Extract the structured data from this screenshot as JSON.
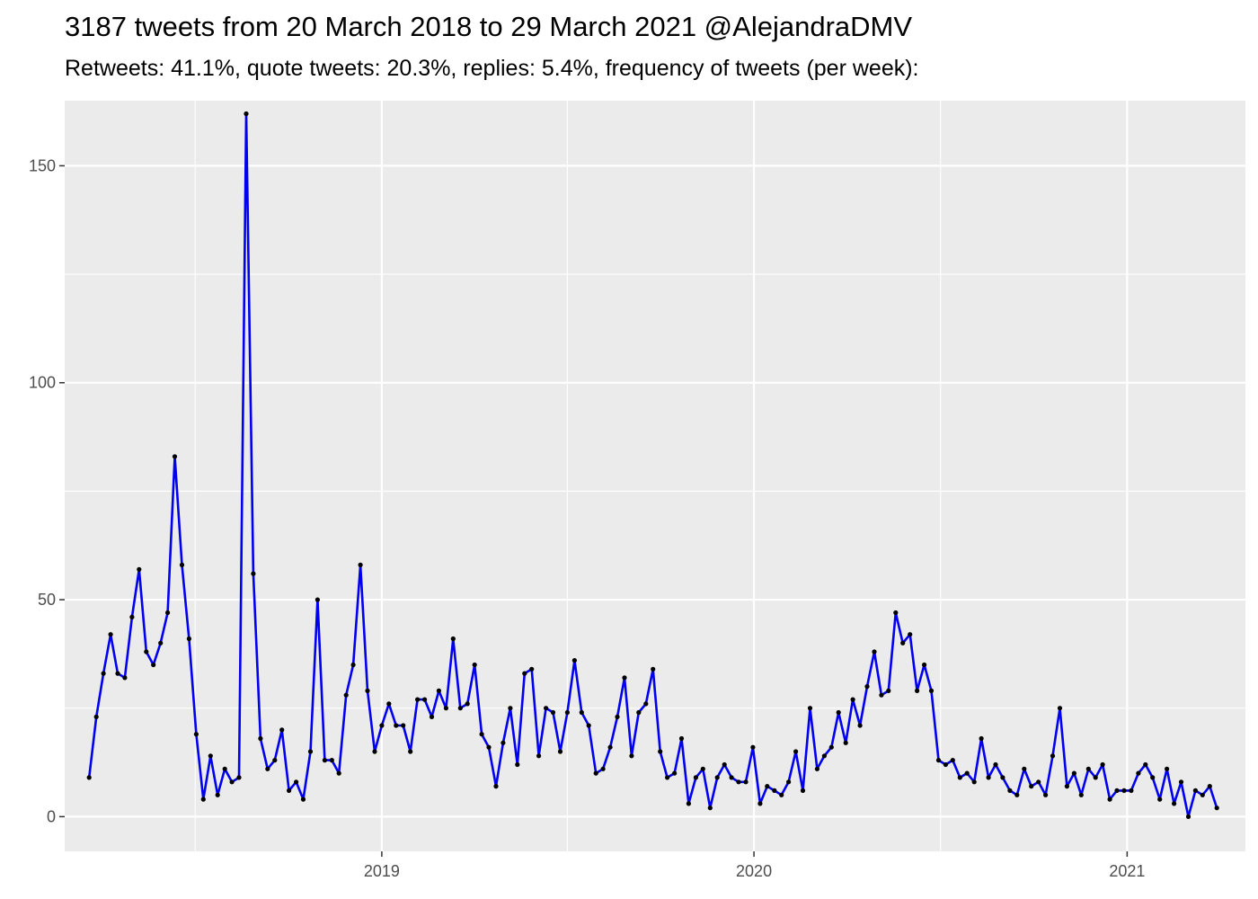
{
  "chart_data": {
    "type": "line",
    "title": "3187 tweets from 20 March 2018 to 29 March 2021 @AlejandraDMV",
    "subtitle": "Retweets: 41.1%, quote tweets: 20.3%, replies: 5.4%, frequency of tweets (per week):",
    "xlabel": "",
    "ylabel": "",
    "x_axis": {
      "kind": "date",
      "range": [
        "2018-02-24",
        "2021-04-27"
      ],
      "ticks": [
        "2019",
        "2020",
        "2021"
      ],
      "tick_dates": [
        "2019-01-01",
        "2020-01-01",
        "2021-01-01"
      ]
    },
    "y_axis": {
      "range": [
        -8,
        165
      ],
      "ticks": [
        0,
        50,
        100,
        150
      ]
    },
    "grid": true,
    "legend": "none",
    "colors": {
      "panel": "#ebebeb",
      "grid": "#ffffff",
      "line": "#0000ee",
      "points": "#000000",
      "tick_text": "#4d4d4d"
    },
    "series": [
      {
        "x": [
          "2018-03-20",
          "2018-03-27",
          "2018-04-03",
          "2018-04-10",
          "2018-04-17",
          "2018-04-24",
          "2018-05-01",
          "2018-05-08",
          "2018-05-15",
          "2018-05-22",
          "2018-05-29",
          "2018-06-05",
          "2018-06-12",
          "2018-06-19",
          "2018-06-26",
          "2018-07-03",
          "2018-07-10",
          "2018-07-17",
          "2018-07-24",
          "2018-07-31",
          "2018-08-07",
          "2018-08-14",
          "2018-08-21",
          "2018-08-28",
          "2018-09-04",
          "2018-09-11",
          "2018-09-18",
          "2018-09-25",
          "2018-10-02",
          "2018-10-09",
          "2018-10-16",
          "2018-10-23",
          "2018-10-30",
          "2018-11-06",
          "2018-11-13",
          "2018-11-20",
          "2018-11-27",
          "2018-12-04",
          "2018-12-11",
          "2018-12-18",
          "2018-12-25",
          "2019-01-01",
          "2019-01-08",
          "2019-01-15",
          "2019-01-22",
          "2019-01-29",
          "2019-02-05",
          "2019-02-12",
          "2019-02-19",
          "2019-02-26",
          "2019-03-05",
          "2019-03-12",
          "2019-03-19",
          "2019-03-26",
          "2019-04-02",
          "2019-04-09",
          "2019-04-16",
          "2019-04-23",
          "2019-04-30",
          "2019-05-07",
          "2019-05-14",
          "2019-05-21",
          "2019-05-28",
          "2019-06-04",
          "2019-06-11",
          "2019-06-18",
          "2019-06-25",
          "2019-07-02",
          "2019-07-09",
          "2019-07-16",
          "2019-07-23",
          "2019-07-30",
          "2019-08-06",
          "2019-08-13",
          "2019-08-20",
          "2019-08-27",
          "2019-09-03",
          "2019-09-10",
          "2019-09-17",
          "2019-09-24",
          "2019-10-01",
          "2019-10-08",
          "2019-10-15",
          "2019-10-22",
          "2019-10-29",
          "2019-11-05",
          "2019-11-12",
          "2019-11-19",
          "2019-11-26",
          "2019-12-03",
          "2019-12-10",
          "2019-12-17",
          "2019-12-24",
          "2019-12-31",
          "2020-01-07",
          "2020-01-14",
          "2020-01-21",
          "2020-01-28",
          "2020-02-04",
          "2020-02-11",
          "2020-02-18",
          "2020-02-25",
          "2020-03-03",
          "2020-03-10",
          "2020-03-17",
          "2020-03-24",
          "2020-03-31",
          "2020-04-07",
          "2020-04-14",
          "2020-04-21",
          "2020-04-28",
          "2020-05-05",
          "2020-05-12",
          "2020-05-19",
          "2020-05-26",
          "2020-06-02",
          "2020-06-09",
          "2020-06-16",
          "2020-06-23",
          "2020-06-30",
          "2020-07-07",
          "2020-07-14",
          "2020-07-21",
          "2020-07-28",
          "2020-08-04",
          "2020-08-11",
          "2020-08-18",
          "2020-08-25",
          "2020-09-01",
          "2020-09-08",
          "2020-09-15",
          "2020-09-22",
          "2020-09-29",
          "2020-10-06",
          "2020-10-13",
          "2020-10-20",
          "2020-10-27",
          "2020-11-03",
          "2020-11-10",
          "2020-11-17",
          "2020-11-24",
          "2020-12-01",
          "2020-12-08",
          "2020-12-15",
          "2020-12-22",
          "2020-12-29",
          "2021-01-05",
          "2021-01-12",
          "2021-01-19",
          "2021-01-26",
          "2021-02-02",
          "2021-02-09",
          "2021-02-16",
          "2021-02-23",
          "2021-03-02",
          "2021-03-09",
          "2021-03-16",
          "2021-03-23",
          "2021-03-30"
        ],
        "values": [
          9,
          23,
          33,
          42,
          33,
          32,
          46,
          57,
          38,
          35,
          40,
          47,
          83,
          58,
          41,
          19,
          4,
          14,
          5,
          11,
          8,
          9,
          162,
          56,
          18,
          11,
          13,
          20,
          6,
          8,
          4,
          15,
          50,
          13,
          13,
          10,
          28,
          35,
          58,
          29,
          15,
          21,
          26,
          21,
          21,
          15,
          27,
          27,
          23,
          29,
          25,
          41,
          25,
          26,
          35,
          19,
          16,
          7,
          17,
          25,
          12,
          33,
          34,
          14,
          25,
          24,
          15,
          24,
          36,
          24,
          21,
          10,
          11,
          16,
          23,
          32,
          14,
          24,
          26,
          34,
          15,
          9,
          10,
          18,
          3,
          9,
          11,
          2,
          9,
          12,
          9,
          8,
          8,
          16,
          3,
          7,
          6,
          5,
          8,
          15,
          6,
          25,
          11,
          14,
          16,
          24,
          17,
          27,
          21,
          30,
          38,
          28,
          29,
          47,
          40,
          42,
          29,
          35,
          29,
          13,
          12,
          13,
          9,
          10,
          8,
          18,
          9,
          12,
          9,
          6,
          5,
          11,
          7,
          8,
          5,
          14,
          25,
          7,
          10,
          5,
          11,
          9,
          12,
          4,
          6,
          6,
          6,
          10,
          12,
          9,
          4,
          11,
          3,
          8,
          0,
          6,
          5,
          7,
          2
        ]
      }
    ]
  }
}
